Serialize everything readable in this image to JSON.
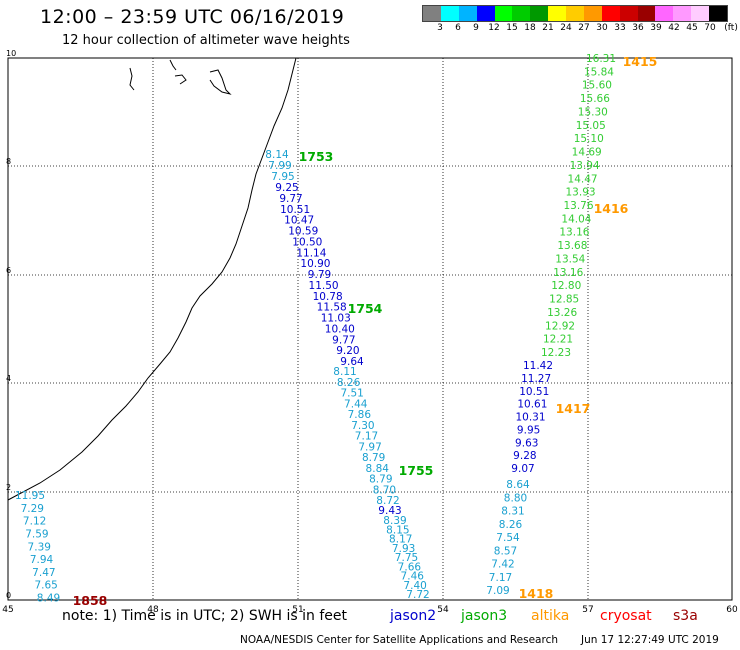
{
  "header": {
    "title": "12:00 – 23:59 UTC 06/16/2019",
    "subtitle": "12 hour collection of altimeter wave heights"
  },
  "legend": {
    "unit": "(ft)",
    "stops": [
      {
        "color": "#808080",
        "label": "3"
      },
      {
        "color": "#00ffff",
        "label": "6"
      },
      {
        "color": "#00b4ff",
        "label": "9"
      },
      {
        "color": "#0000ff",
        "label": "12"
      },
      {
        "color": "#00ff00",
        "label": "15"
      },
      {
        "color": "#00cc00",
        "label": "18"
      },
      {
        "color": "#009900",
        "label": "21"
      },
      {
        "color": "#ffff00",
        "label": "24"
      },
      {
        "color": "#ffcc00",
        "label": "27"
      },
      {
        "color": "#ff9900",
        "label": "30"
      },
      {
        "color": "#ff0000",
        "label": "33"
      },
      {
        "color": "#cc0000",
        "label": "36"
      },
      {
        "color": "#990000",
        "label": "39"
      },
      {
        "color": "#ff66ff",
        "label": "42"
      },
      {
        "color": "#ff99ff",
        "label": "45"
      },
      {
        "color": "#ffccff",
        "label": "70"
      },
      {
        "color": "#000000",
        "label": ""
      }
    ]
  },
  "map": {
    "x_ticks": [
      "45",
      "48",
      "51",
      "54",
      "57",
      "60"
    ],
    "y_ticks": [
      "0",
      "2",
      "4",
      "6",
      "8",
      "10"
    ]
  },
  "colors": {
    "jason2": "#0000cc",
    "jason3": "#00aa00",
    "altika": "#ff9900",
    "cryosat": "#ff0000",
    "s3a": "#990000",
    "light": "#1aa0d0",
    "green_light": "#33cc33"
  },
  "tracks": [
    {
      "color": "light",
      "values": [
        "11.95",
        "7.29",
        "7.12",
        "7.59",
        "7.39",
        "7.94",
        "7.47",
        "7.65",
        "8.49"
      ]
    },
    {
      "color": "light",
      "values": [
        "8.14",
        "7.99",
        "7.95"
      ]
    },
    {
      "color": "jason2",
      "values": [
        "9.25",
        "9.77",
        "10.51",
        "10.47",
        "10.59",
        "10.50",
        "11.14",
        "10.90",
        "9.79",
        "11.50",
        "10.78",
        "11.58",
        "11.03",
        "10.40",
        "9.77",
        "9.20",
        "9.64"
      ]
    },
    {
      "color": "light",
      "values": [
        "8.11",
        "8.26",
        "7.51",
        "7.44",
        "7.86",
        "7.30",
        "7.17",
        "7.97",
        "8.79",
        "8.84",
        "8.79",
        "8.70",
        "8.72"
      ]
    },
    {
      "color": "jason2",
      "values": [
        "9.43"
      ]
    },
    {
      "color": "light",
      "values": [
        "8.39",
        "8.15",
        "8.17",
        "7.93",
        "7.75",
        "7.66",
        "7.46",
        "7.40",
        "7.72"
      ]
    },
    {
      "color": "green_light",
      "values": [
        "16.31",
        "15.84",
        "15.60",
        "15.66",
        "15.30",
        "15.05",
        "15.10",
        "14.69",
        "13.94",
        "14.47",
        "13.93",
        "13.76",
        "14.04",
        "13.16",
        "13.68",
        "13.54",
        "13.16",
        "12.80",
        "12.85",
        "13.26",
        "12.92",
        "12.21",
        "12.23"
      ]
    },
    {
      "color": "jason2",
      "values": [
        "11.42",
        "11.27",
        "10.51",
        "10.61",
        "10.31",
        "9.95",
        "9.63",
        "9.28",
        "9.07"
      ]
    },
    {
      "color": "light",
      "values": [
        "8.64",
        "8.80",
        "8.31",
        "8.26",
        "7.54",
        "8.57",
        "7.42",
        "7.17",
        "7.09"
      ]
    }
  ],
  "pass_times": [
    {
      "text": "1415",
      "color": "altika"
    },
    {
      "text": "1416",
      "color": "altika"
    },
    {
      "text": "1417",
      "color": "altika"
    },
    {
      "text": "1418",
      "color": "altika"
    },
    {
      "text": "1753",
      "color": "jason3"
    },
    {
      "text": "1754",
      "color": "jason3"
    },
    {
      "text": "1755",
      "color": "jason3"
    },
    {
      "text": "1858",
      "color": "s3a"
    }
  ],
  "note": {
    "text": "note:  1) Time is in UTC;  2) SWH is in feet",
    "jason2": "jason2",
    "jason3": "jason3",
    "altika": "altika",
    "cryosat": "cryosat",
    "s3a": "s3a"
  },
  "footer": {
    "credit": "NOAA/NESDIS Center for Satellite Applications and Research",
    "timestamp": "Jun 17 12:27:49 UTC 2019"
  }
}
